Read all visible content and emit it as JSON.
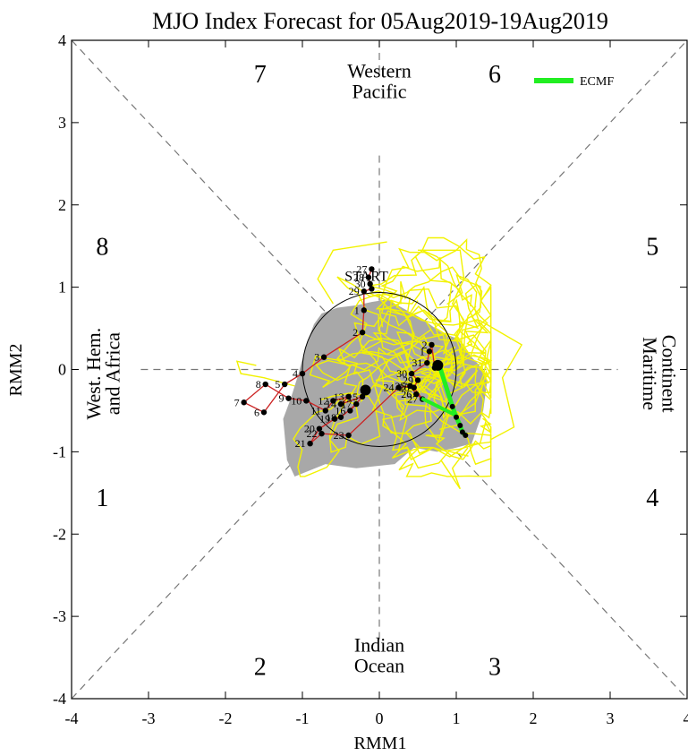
{
  "chart_data": {
    "type": "scatter",
    "title": "MJO Index Forecast for 05Aug2019-19Aug2019",
    "xlabel": "RMM1",
    "ylabel": "RMM2",
    "xlim": [
      -4,
      4
    ],
    "ylim": [
      -4,
      4
    ],
    "xticks": [
      "-4",
      "-3",
      "-2",
      "-1",
      "0",
      "1",
      "2",
      "3",
      "4"
    ],
    "yticks": [
      "-4",
      "-3",
      "-2",
      "-1",
      "0",
      "1",
      "2",
      "3",
      "4"
    ],
    "phases": [
      {
        "label": "1",
        "x": -3.6,
        "y": -1.55
      },
      {
        "label": "2",
        "x": -1.55,
        "y": -3.6
      },
      {
        "label": "3",
        "x": 1.5,
        "y": -3.6
      },
      {
        "label": "4",
        "x": 3.55,
        "y": -1.55
      },
      {
        "label": "5",
        "x": 3.55,
        "y": 1.5
      },
      {
        "label": "6",
        "x": 1.5,
        "y": 3.6
      },
      {
        "label": "7",
        "x": -1.55,
        "y": 3.6
      },
      {
        "label": "8",
        "x": -3.6,
        "y": 1.5
      }
    ],
    "regions": {
      "top": [
        "Western",
        "Pacific"
      ],
      "bottom": [
        "Indian",
        "Ocean"
      ],
      "left": [
        "West. Hem.",
        "and Africa"
      ],
      "right": [
        "Maritime",
        "Continent"
      ]
    },
    "legend": {
      "label": "ECMF",
      "color": "#22ee22",
      "position": "top-right"
    },
    "start_label": "START",
    "observed": {
      "color": "#cc2222",
      "points": [
        {
          "x": -0.1,
          "y": 1.22,
          "label": "27"
        },
        {
          "x": -0.14,
          "y": 1.12,
          "label": "28"
        },
        {
          "x": -0.12,
          "y": 1.04,
          "label": "30"
        },
        {
          "x": -0.1,
          "y": 0.98,
          "label": ""
        },
        {
          "x": -0.2,
          "y": 0.95,
          "label": "29"
        },
        {
          "x": -0.2,
          "y": 0.72,
          "label": "1"
        },
        {
          "x": -0.22,
          "y": 0.45,
          "label": "2"
        },
        {
          "x": -0.72,
          "y": 0.15,
          "label": "3"
        },
        {
          "x": -1.0,
          "y": -0.05,
          "label": "4"
        },
        {
          "x": -1.23,
          "y": -0.18,
          "label": "5"
        },
        {
          "x": -1.5,
          "y": -0.52,
          "label": "6"
        },
        {
          "x": -1.76,
          "y": -0.4,
          "label": "7"
        },
        {
          "x": -1.48,
          "y": -0.18,
          "label": "8"
        },
        {
          "x": -1.18,
          "y": -0.35,
          "label": "9"
        },
        {
          "x": -0.95,
          "y": -0.38,
          "label": "10"
        },
        {
          "x": -0.7,
          "y": -0.5,
          "label": "11"
        },
        {
          "x": -0.6,
          "y": -0.38,
          "label": "12"
        },
        {
          "x": -0.4,
          "y": -0.33,
          "label": "13"
        },
        {
          "x": -0.5,
          "y": -0.42,
          "label": "14"
        },
        {
          "x": -0.22,
          "y": -0.33,
          "label": "15"
        },
        {
          "x": -0.38,
          "y": -0.5,
          "label": "16"
        },
        {
          "x": -0.3,
          "y": -0.42,
          "label": "17"
        },
        {
          "x": -0.5,
          "y": -0.58,
          "label": "18"
        },
        {
          "x": -0.58,
          "y": -0.6,
          "label": "19"
        },
        {
          "x": -0.78,
          "y": -0.72,
          "label": "20"
        },
        {
          "x": -0.9,
          "y": -0.9,
          "label": "21"
        },
        {
          "x": -0.75,
          "y": -0.78,
          "label": "22"
        },
        {
          "x": -0.4,
          "y": -0.8,
          "label": "23"
        },
        {
          "x": 0.25,
          "y": -0.22,
          "label": "24"
        },
        {
          "x": 0.4,
          "y": -0.2,
          "label": "25"
        },
        {
          "x": 0.48,
          "y": -0.3,
          "label": "26"
        },
        {
          "x": 0.56,
          "y": -0.36,
          "label": "27"
        },
        {
          "x": 0.45,
          "y": -0.22,
          "label": "28"
        },
        {
          "x": 0.5,
          "y": -0.13,
          "label": "29"
        },
        {
          "x": 0.42,
          "y": -0.05,
          "label": "30"
        },
        {
          "x": 0.62,
          "y": 0.08,
          "label": "31"
        },
        {
          "x": 0.65,
          "y": 0.22,
          "label": "1"
        },
        {
          "x": 0.68,
          "y": 0.3,
          "label": "2"
        },
        {
          "x": 0.72,
          "y": 0.02,
          "label": ""
        },
        {
          "x": 0.75,
          "y": 0.08,
          "label": ""
        }
      ]
    },
    "ensemble_mean": {
      "color": "#22ee22",
      "points": [
        {
          "x": 0.78,
          "y": 0.05
        },
        {
          "x": 0.95,
          "y": -0.45
        },
        {
          "x": 1.0,
          "y": -0.58
        },
        {
          "x": 1.05,
          "y": -0.68
        },
        {
          "x": 1.08,
          "y": -0.76
        },
        {
          "x": 1.12,
          "y": -0.8
        }
      ]
    },
    "ensemble_mean_start": [
      {
        "x": 0.55,
        "y": -0.35
      },
      {
        "x": 0.98,
        "y": -0.55
      }
    ]
  }
}
